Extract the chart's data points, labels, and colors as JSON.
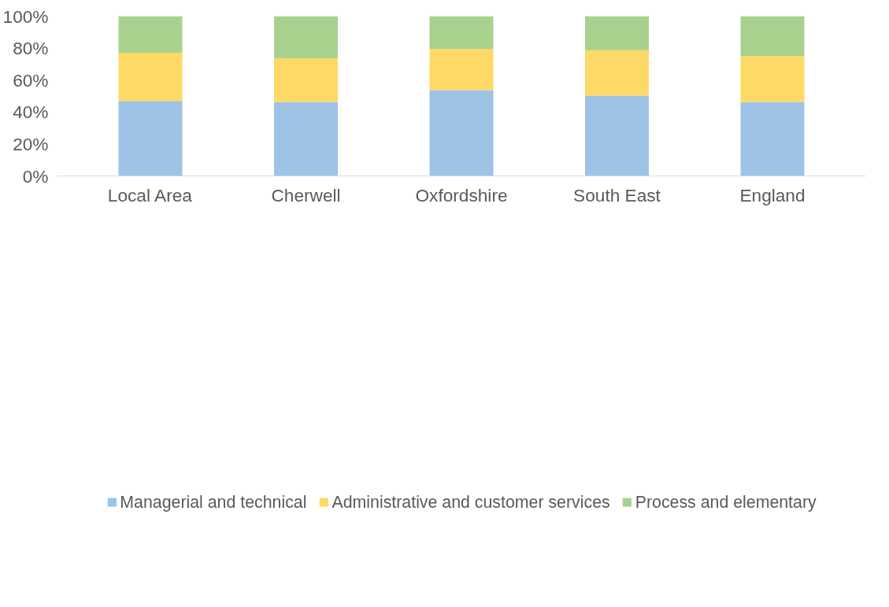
{
  "chart_data": {
    "type": "bar",
    "stacked": true,
    "categories": [
      "Local Area",
      "Cherwell",
      "Oxfordshire",
      "South East",
      "England"
    ],
    "series": [
      {
        "name": "Managerial and technical",
        "color": "#9dc3e6",
        "values": [
          46.9,
          46.3,
          53.7,
          50.3,
          46.3
        ]
      },
      {
        "name": "Administrative and customer services",
        "color": "#ffd966",
        "values": [
          30.2,
          27.3,
          25.7,
          28.4,
          28.7
        ]
      },
      {
        "name": "Process and elementary",
        "color": "#a9d18e",
        "values": [
          22.9,
          26.4,
          20.6,
          21.3,
          25.0
        ]
      }
    ],
    "ylim": [
      0,
      100
    ],
    "yticks": [
      {
        "value": 0,
        "label": "0%"
      },
      {
        "value": 20,
        "label": "20%"
      },
      {
        "value": 40,
        "label": "40%"
      },
      {
        "value": 60,
        "label": "60%"
      },
      {
        "value": 80,
        "label": "80%"
      },
      {
        "value": 100,
        "label": "100%"
      }
    ],
    "grid": false,
    "legend": "bottom"
  }
}
